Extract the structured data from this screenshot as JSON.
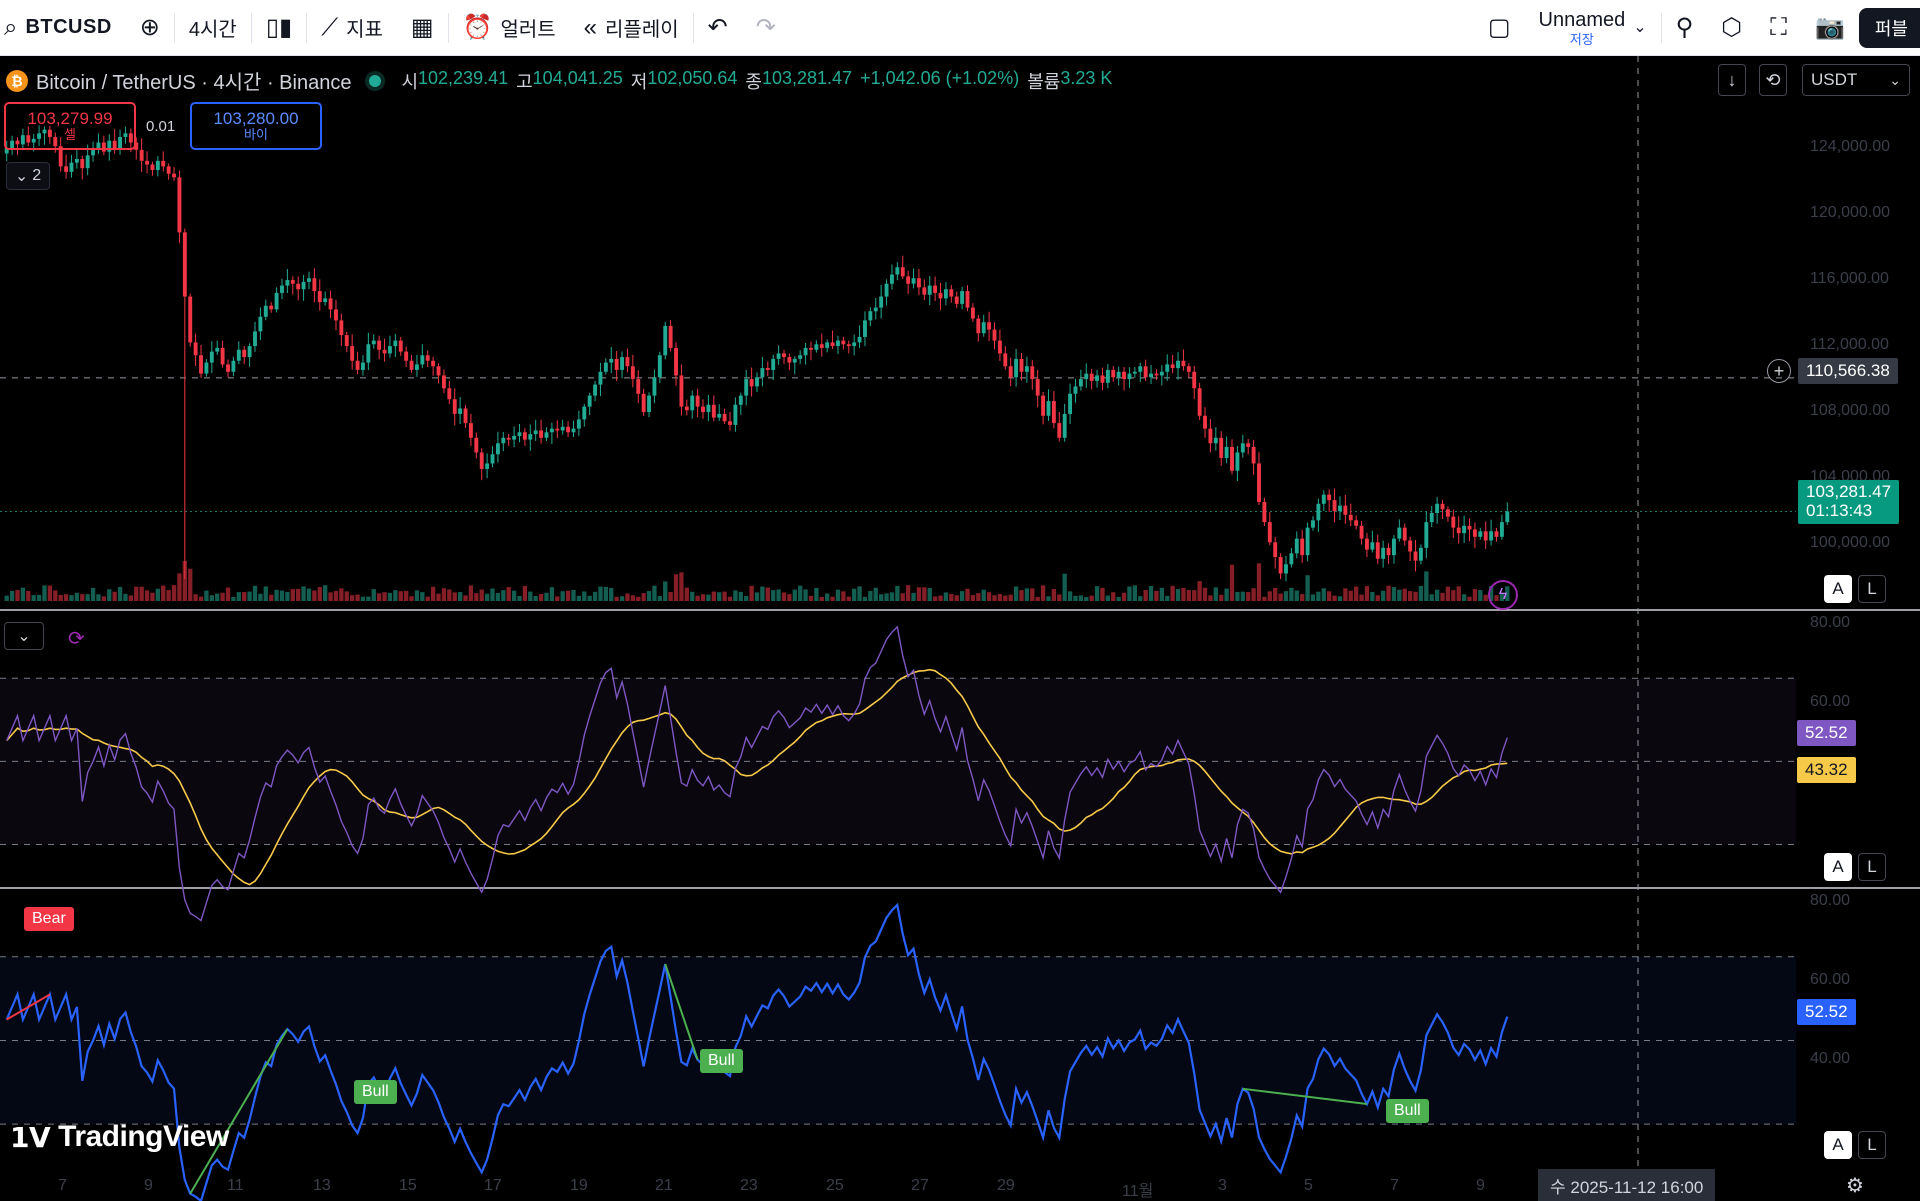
{
  "toolbar": {
    "symbol": "BTCUSD",
    "interval": "4시간",
    "indicators_label": "지표",
    "alert_label": "얼러트",
    "replay_label": "리플레이",
    "layout_name": "Unnamed",
    "save_label": "저장",
    "publish_label": "퍼블",
    "icons": [
      "search-icon",
      "plus-circle-icon",
      "candles-icon",
      "indicators-icon",
      "templates-icon",
      "alarm-clock-icon",
      "replay-icon",
      "undo-icon",
      "redo-icon",
      "layout-square-icon",
      "chevron-down-icon",
      "quick-search-icon",
      "settings-hex-icon",
      "fullscreen-icon",
      "camera-icon"
    ]
  },
  "legend": {
    "coin_glyph": "₿",
    "title": "Bitcoin / TetherUS · 4시간 · Binance",
    "open_key": "시",
    "open": "102,239.41",
    "high_key": "고",
    "high": "104,041.25",
    "low_key": "저",
    "low": "102,050.64",
    "close_key": "종",
    "close": "103,281.47",
    "change": "+1,042.06 (+1.02%)",
    "volume_key": "볼륨",
    "volume": "3.23 K"
  },
  "trade": {
    "sell_price": "103,279.99",
    "sell_label": "셀",
    "spread": "0.01",
    "buy_price": "103,280.00",
    "buy_label": "바이"
  },
  "collapse_count": "2",
  "currency": "USDT",
  "price_axis": [
    "124,000.00",
    "120,000.00",
    "116,000.00",
    "112,000.00",
    "108,000.00",
    "104,000.00",
    "100,000.00"
  ],
  "crosshair_price": "110,566.38",
  "last_price": "103,281.47",
  "countdown": "01:13:43",
  "rsi_axis": [
    "80.00",
    "60.00",
    "40.00"
  ],
  "rsi_value": "52.52",
  "rsi_ma_value": "43.32",
  "div_axis": [
    "80.00",
    "60.00",
    "40.00"
  ],
  "div_value": "52.52",
  "labels": {
    "bear": "Bear",
    "bull": "Bull"
  },
  "auto_label": "A",
  "log_label": "L",
  "logo_text": "TradingView",
  "time_axis": [
    "7",
    "9",
    "11",
    "13",
    "15",
    "17",
    "19",
    "21",
    "23",
    "25",
    "27",
    "29",
    "11월",
    "3",
    "5",
    "7",
    "9"
  ],
  "crosshair_time": "수 2025-11-12   16:00",
  "colors": {
    "up": "#22ab94",
    "down": "#f23645",
    "rsi": "#7e57c2",
    "rsi_ma": "#f7c948",
    "div": "#2962ff",
    "bull": "#4caf50",
    "bear": "#f23645"
  },
  "chart_data": {
    "type": "candlestick",
    "closes": [
      123100,
      123500,
      123300,
      123800,
      123400,
      123600,
      123900,
      124100,
      123700,
      123200,
      122100,
      121800,
      122300,
      122500,
      122000,
      122700,
      123000,
      123400,
      122900,
      123500,
      123100,
      123700,
      123900,
      123400,
      123000,
      122400,
      122200,
      121900,
      122400,
      122100,
      121700,
      121500,
      118500,
      115000,
      112500,
      111800,
      110800,
      111400,
      112000,
      112200,
      111300,
      110900,
      111500,
      112100,
      111700,
      112300,
      113100,
      113900,
      114500,
      114300,
      115200,
      115600,
      115900,
      115700,
      115400,
      115800,
      116000,
      115300,
      114700,
      114900,
      114300,
      113700,
      112900,
      112300,
      111500,
      111000,
      111400,
      112400,
      112600,
      112100,
      111900,
      112300,
      112600,
      112000,
      111500,
      111000,
      111300,
      111800,
      111500,
      111200,
      110700,
      110000,
      109400,
      108600,
      108900,
      108100,
      107300,
      106500,
      105600,
      105900,
      106400,
      107000,
      107300,
      107200,
      107400,
      107600,
      107200,
      107500,
      107700,
      107300,
      107600,
      107800,
      107700,
      107900,
      107600,
      107800,
      108300,
      109000,
      109600,
      110200,
      110900,
      111400,
      111600,
      111000,
      111700,
      111200,
      110500,
      109700,
      108700,
      109600,
      110600,
      111800,
      113400,
      112200,
      110700,
      109000,
      108800,
      109600,
      109000,
      108700,
      109100,
      108400,
      108600,
      108200,
      108000,
      109100,
      109600,
      110500,
      110100,
      110600,
      111100,
      111000,
      111600,
      111900,
      111700,
      111400,
      111600,
      111800,
      112200,
      112100,
      112400,
      112200,
      112500,
      112300,
      112600,
      112400,
      112300,
      112500,
      112800,
      113700,
      114200,
      114400,
      115000,
      115700,
      116200,
      116600,
      116100,
      115700,
      116000,
      115500,
      115100,
      115600,
      115200,
      114900,
      115400,
      115000,
      114600,
      115300,
      114400,
      113800,
      113000,
      113600,
      113200,
      112600,
      111900,
      111200,
      110600,
      111600,
      110900,
      111200,
      110500,
      109600,
      108500,
      109300,
      108100,
      107300,
      108600,
      109700,
      110100,
      110500,
      110800,
      110400,
      110700,
      110300,
      111000,
      110600,
      110900,
      110500,
      110800,
      110900,
      111200,
      110600,
      110800,
      110700,
      110900,
      111300,
      111100,
      111500,
      111200,
      110900,
      110000,
      108500,
      107800,
      107000,
      107300,
      106200,
      106800,
      105500,
      106500,
      107000,
      106800,
      105900,
      103800,
      102700,
      101600,
      100800,
      99900,
      100400,
      101000,
      101800,
      100900,
      102400,
      102800,
      103700,
      104200,
      103900,
      103300,
      103600,
      103100,
      102800,
      102500,
      101800,
      101200,
      101600,
      100700,
      101300,
      100900,
      101800,
      102400,
      101700,
      101100,
      100600,
      101300,
      102700,
      103200,
      103700,
      103400,
      103000,
      102400,
      102100,
      102500,
      102300,
      101900,
      102200,
      101700,
      102200,
      101900,
      102700,
      103281
    ],
    "ylim": [
      98400,
      125500
    ],
    "ticks_y": [
      100000,
      104000,
      108000,
      112000,
      116000,
      120000,
      124000
    ]
  }
}
